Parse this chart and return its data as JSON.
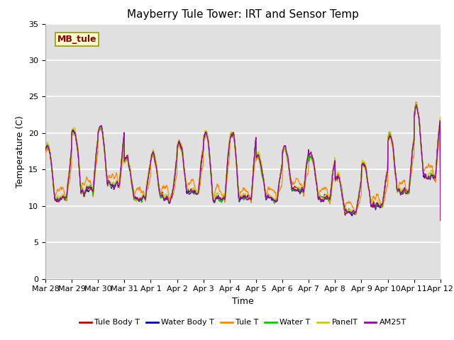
{
  "title": "Mayberry Tule Tower: IRT and Sensor Temp",
  "xlabel": "Time",
  "ylabel": "Temperature (C)",
  "ylim": [
    0,
    35
  ],
  "yticks": [
    0,
    5,
    10,
    15,
    20,
    25,
    30,
    35
  ],
  "date_labels": [
    "Mar 28",
    "Mar 29",
    "Mar 30",
    "Mar 31",
    "Apr 1",
    "Apr 2",
    "Apr 3",
    "Apr 4",
    "Apr 5",
    "Apr 6",
    "Apr 7",
    "Apr 8",
    "Apr 9",
    "Apr 10",
    "Apr 11",
    "Apr 12"
  ],
  "annotation_text": "MB_tule",
  "legend": [
    {
      "label": "Tule Body T",
      "color": "#cc0000"
    },
    {
      "label": "Water Body T",
      "color": "#0000cc"
    },
    {
      "label": "Tule T",
      "color": "#ff8800"
    },
    {
      "label": "Water T",
      "color": "#00cc00"
    },
    {
      "label": "PanelT",
      "color": "#cccc00"
    },
    {
      "label": "AM25T",
      "color": "#9900aa"
    }
  ],
  "bg_color": "#e0e0e0",
  "grid_color": "#ffffff",
  "title_fontsize": 11,
  "axis_fontsize": 9,
  "tick_fontsize": 8
}
